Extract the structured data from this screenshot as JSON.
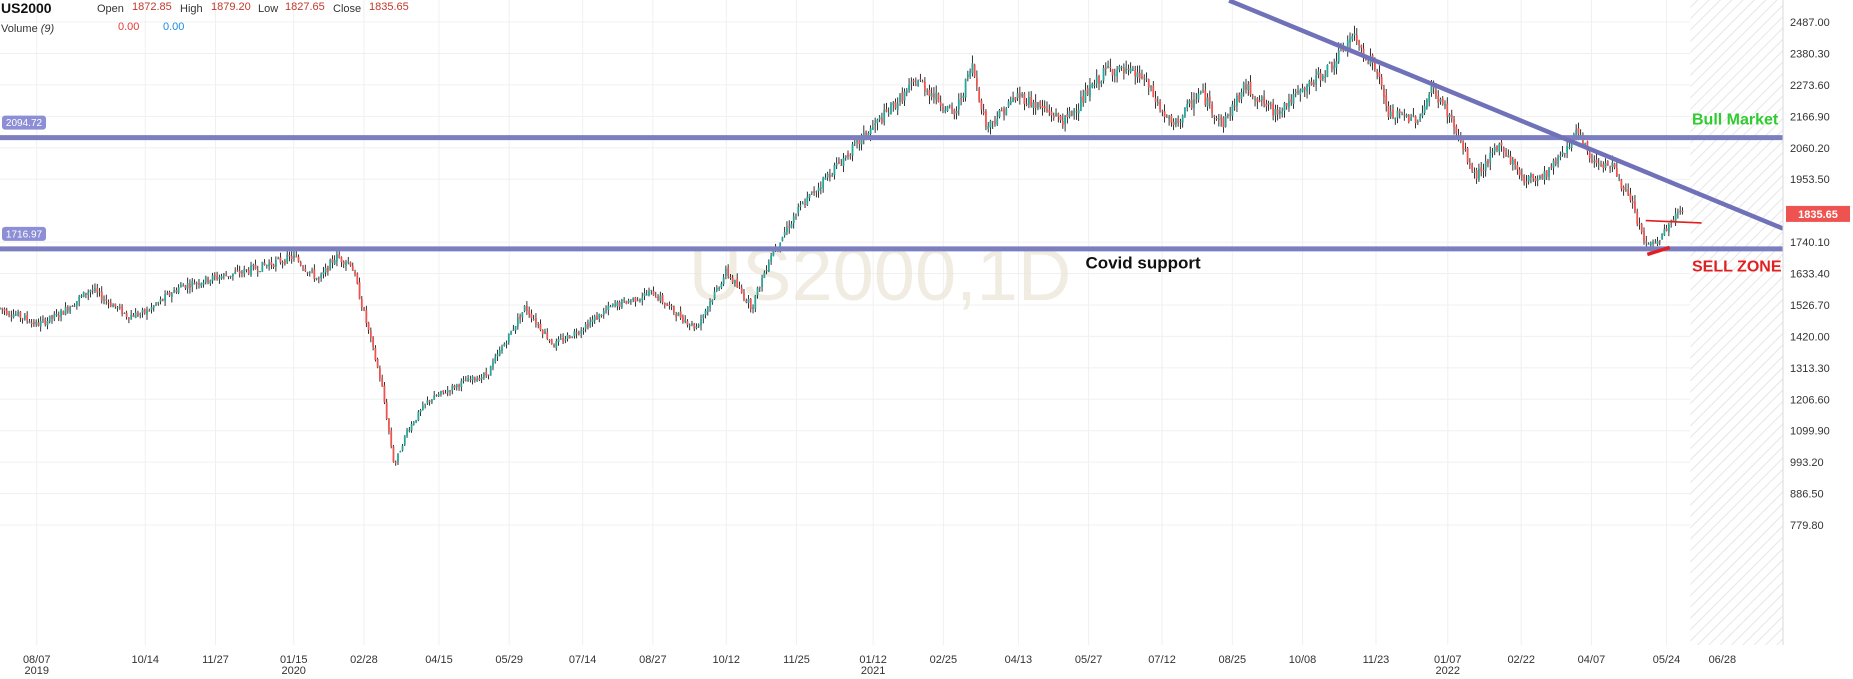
{
  "header": {
    "symbol": "US2000",
    "open_label": "Open",
    "open_value": "1872.85",
    "high_label": "High",
    "high_value": "1879.20",
    "low_label": "Low",
    "low_value": "1827.65",
    "close_label": "Close",
    "close_value": "1835.65",
    "volume_label": "Volume",
    "volume_period": "(9)",
    "volume_value_1": "0.00",
    "volume_value_2": "0.00"
  },
  "watermark": "US2000,1D",
  "colors": {
    "up": "#26a69a",
    "down": "#ef5350",
    "candle_wick": "#000000",
    "level_line": "#7b7fbf",
    "trendline": "#6f72b8",
    "last_price": "#ef5350",
    "bull_label": "#2ecc2e",
    "sell_label": "#e02020"
  },
  "chart_data": {
    "type": "candlestick",
    "title": "US2000,1D",
    "y_axis": {
      "ticks": [
        779.8,
        886.5,
        993.2,
        1099.9,
        1206.6,
        1313.3,
        1420.0,
        1526.7,
        1633.4,
        1740.1,
        1953.5,
        2060.2,
        2166.9,
        2273.6,
        2380.3,
        2487.0
      ],
      "tick_labels": [
        "779.80",
        "886.50",
        "993.20",
        "1099.90",
        "1206.60",
        "1313.30",
        "1420.00",
        "1526.70",
        "1633.40",
        "1740.10",
        "1953.50",
        "2060.20",
        "2166.90",
        "2273.60",
        "2380.30",
        "2487.00"
      ],
      "range": [
        700,
        2530
      ]
    },
    "x_axis": {
      "range": [
        "2019-07-15",
        "2022-08-05"
      ],
      "ticks": [
        {
          "date": "2019-08-07",
          "label": "08/07",
          "sub": "2019"
        },
        {
          "date": "2019-10-14",
          "label": "10/14",
          "sub": ""
        },
        {
          "date": "2019-11-27",
          "label": "11/27",
          "sub": ""
        },
        {
          "date": "2020-01-15",
          "label": "01/15",
          "sub": "2020"
        },
        {
          "date": "2020-02-28",
          "label": "02/28",
          "sub": ""
        },
        {
          "date": "2020-04-15",
          "label": "04/15",
          "sub": ""
        },
        {
          "date": "2020-05-29",
          "label": "05/29",
          "sub": ""
        },
        {
          "date": "2020-07-14",
          "label": "07/14",
          "sub": ""
        },
        {
          "date": "2020-08-27",
          "label": "08/27",
          "sub": ""
        },
        {
          "date": "2020-10-12",
          "label": "10/12",
          "sub": ""
        },
        {
          "date": "2020-11-25",
          "label": "11/25",
          "sub": ""
        },
        {
          "date": "2021-01-12",
          "label": "01/12",
          "sub": "2021"
        },
        {
          "date": "2021-02-25",
          "label": "02/25",
          "sub": ""
        },
        {
          "date": "2021-04-13",
          "label": "04/13",
          "sub": ""
        },
        {
          "date": "2021-05-27",
          "label": "05/27",
          "sub": ""
        },
        {
          "date": "2021-07-12",
          "label": "07/12",
          "sub": ""
        },
        {
          "date": "2021-08-25",
          "label": "08/25",
          "sub": ""
        },
        {
          "date": "2021-10-08",
          "label": "10/08",
          "sub": ""
        },
        {
          "date": "2021-11-23",
          "label": "11/23",
          "sub": ""
        },
        {
          "date": "2022-01-07",
          "label": "01/07",
          "sub": "2022"
        },
        {
          "date": "2022-02-22",
          "label": "02/22",
          "sub": ""
        },
        {
          "date": "2022-04-07",
          "label": "04/07",
          "sub": ""
        },
        {
          "date": "2022-05-24",
          "label": "05/24",
          "sub": ""
        },
        {
          "date": "2022-06-28",
          "label": "06/28",
          "sub": ""
        }
      ]
    },
    "price_path": [
      [
        "2019-07-15",
        1515
      ],
      [
        "2019-07-31",
        1480
      ],
      [
        "2019-08-07",
        1460
      ],
      [
        "2019-08-20",
        1490
      ],
      [
        "2019-09-10",
        1580
      ],
      [
        "2019-10-03",
        1490
      ],
      [
        "2019-10-14",
        1500
      ],
      [
        "2019-11-05",
        1590
      ],
      [
        "2019-11-27",
        1620
      ],
      [
        "2019-12-15",
        1640
      ],
      [
        "2020-01-15",
        1690
      ],
      [
        "2020-01-31",
        1610
      ],
      [
        "2020-02-10",
        1690
      ],
      [
        "2020-02-20",
        1670
      ],
      [
        "2020-02-28",
        1500
      ],
      [
        "2020-03-10",
        1260
      ],
      [
        "2020-03-18",
        980
      ],
      [
        "2020-03-26",
        1100
      ],
      [
        "2020-04-08",
        1200
      ],
      [
        "2020-04-28",
        1260
      ],
      [
        "2020-05-15",
        1290
      ],
      [
        "2020-06-08",
        1520
      ],
      [
        "2020-06-26",
        1390
      ],
      [
        "2020-07-14",
        1450
      ],
      [
        "2020-08-01",
        1520
      ],
      [
        "2020-08-27",
        1570
      ],
      [
        "2020-09-10",
        1500
      ],
      [
        "2020-09-23",
        1450
      ],
      [
        "2020-10-12",
        1640
      ],
      [
        "2020-10-28",
        1520
      ],
      [
        "2020-11-09",
        1700
      ],
      [
        "2020-11-25",
        1840
      ],
      [
        "2020-12-15",
        1970
      ],
      [
        "2021-01-12",
        2130
      ],
      [
        "2021-02-09",
        2290
      ],
      [
        "2021-03-04",
        2170
      ],
      [
        "2021-03-15",
        2340
      ],
      [
        "2021-03-24",
        2130
      ],
      [
        "2021-04-13",
        2240
      ],
      [
        "2021-05-12",
        2150
      ],
      [
        "2021-06-08",
        2330
      ],
      [
        "2021-06-30",
        2300
      ],
      [
        "2021-07-12",
        2180
      ],
      [
        "2021-07-19",
        2130
      ],
      [
        "2021-08-05",
        2250
      ],
      [
        "2021-08-19",
        2140
      ],
      [
        "2021-09-02",
        2270
      ],
      [
        "2021-09-20",
        2180
      ],
      [
        "2021-10-08",
        2250
      ],
      [
        "2021-10-28",
        2350
      ],
      [
        "2021-11-08",
        2440
      ],
      [
        "2021-11-23",
        2330
      ],
      [
        "2021-12-01",
        2170
      ],
      [
        "2021-12-20",
        2160
      ],
      [
        "2021-12-28",
        2260
      ],
      [
        "2022-01-07",
        2180
      ],
      [
        "2022-01-24",
        1960
      ],
      [
        "2022-02-09",
        2070
      ],
      [
        "2022-02-24",
        1950
      ],
      [
        "2022-03-09",
        1970
      ],
      [
        "2022-03-29",
        2110
      ],
      [
        "2022-04-07",
        2020
      ],
      [
        "2022-04-20",
        2000
      ],
      [
        "2022-05-02",
        1870
      ],
      [
        "2022-05-12",
        1720
      ],
      [
        "2022-05-20",
        1750
      ],
      [
        "2022-05-31",
        1840
      ],
      [
        "2022-06-03",
        1836
      ]
    ],
    "candle_count": 745,
    "horizontal_levels": [
      {
        "value": 2094.72,
        "label": "2094.72"
      },
      {
        "value": 1716.97,
        "label": "1716.97"
      }
    ],
    "trendline": {
      "start": [
        "2021-08-23",
        2560
      ],
      "end": [
        "2022-08-05",
        1786
      ]
    },
    "small_lines": [
      {
        "start": [
          "2022-05-11",
          1813
        ],
        "end": [
          "2022-06-15",
          1805
        ]
      },
      {
        "start": [
          "2022-05-12",
          1698
        ],
        "end": [
          "2022-05-26",
          1722
        ]
      }
    ],
    "annotations": [
      {
        "text": "Bull Market",
        "x": "2022-06-09",
        "y": 2160
      },
      {
        "text": "Covid support",
        "x": "2021-05-25",
        "y": 1670
      },
      {
        "text": "SELL ZONE",
        "x": "2022-06-09",
        "y": 1660
      }
    ],
    "last_price": {
      "value": 1835.65,
      "label": "1835.65"
    },
    "future_shading_start": "2022-06-08",
    "grid": true,
    "legend": "none"
  }
}
